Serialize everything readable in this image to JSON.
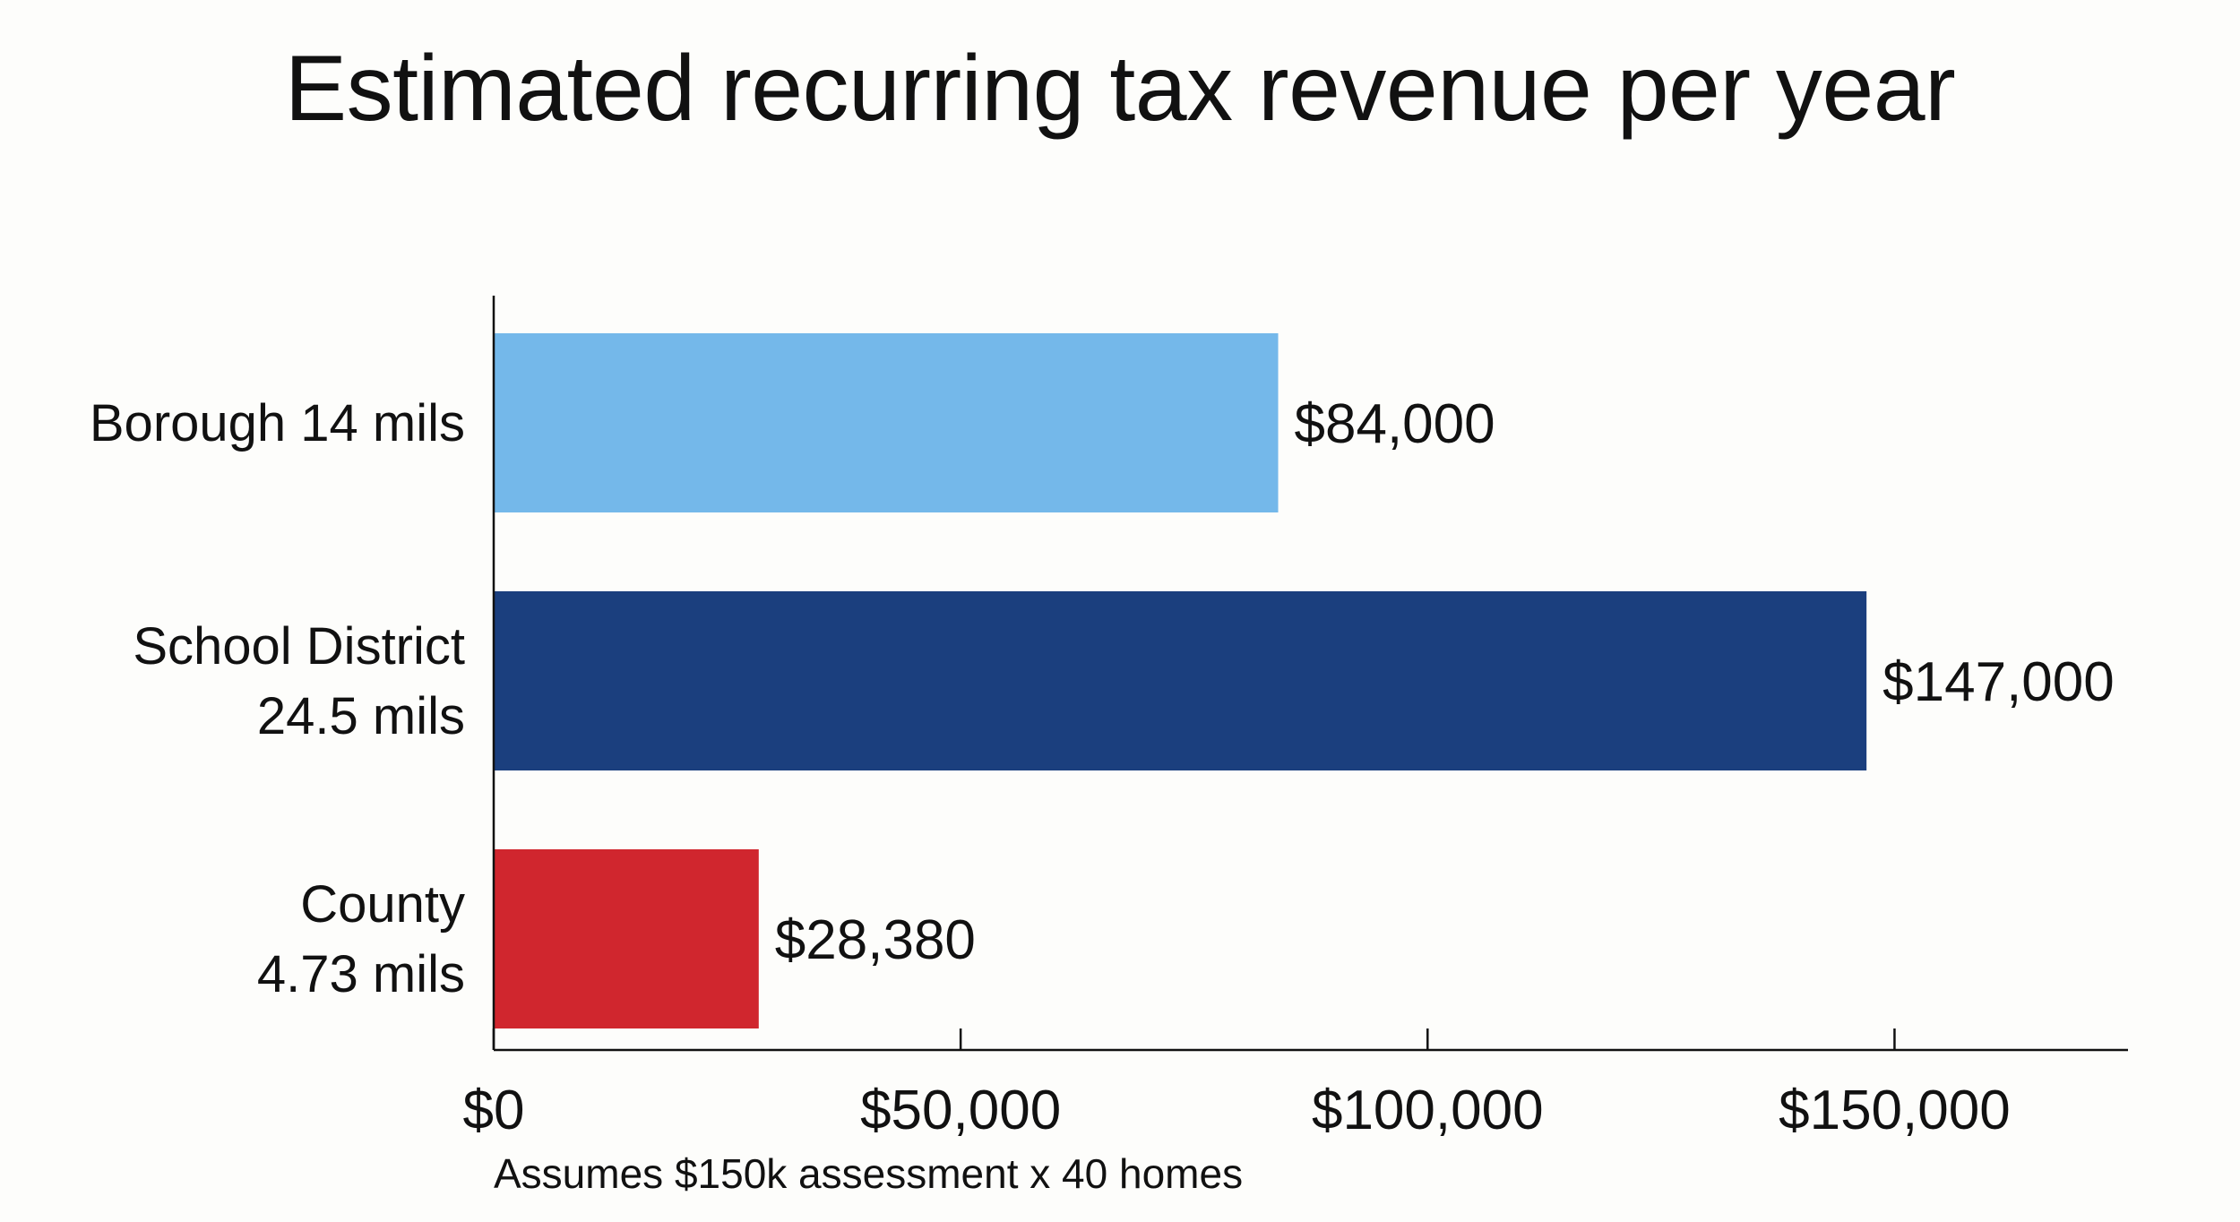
{
  "chart_data": {
    "type": "bar",
    "orientation": "horizontal",
    "title": "Estimated recurring tax revenue per year",
    "categories": [
      [
        "Borough 14 mils"
      ],
      [
        "School District",
        "24.5 mils"
      ],
      [
        "County",
        "4.73 mils"
      ]
    ],
    "values": [
      84000,
      147000,
      28380
    ],
    "value_labels": [
      "$84,000",
      "$147,000",
      "$28,380"
    ],
    "colors": [
      "#74b8ea",
      "#1b3f7e",
      "#d0262e"
    ],
    "xlim": [
      0,
      175000
    ],
    "xticks": [
      0,
      50000,
      100000,
      150000
    ],
    "xtick_labels": [
      "$0",
      "$50,000",
      "$100,000",
      "$150,000"
    ],
    "note": "Assumes $150k assessment x 40 homes",
    "xlabel": "",
    "ylabel": "",
    "grid": false,
    "legend": "none"
  }
}
